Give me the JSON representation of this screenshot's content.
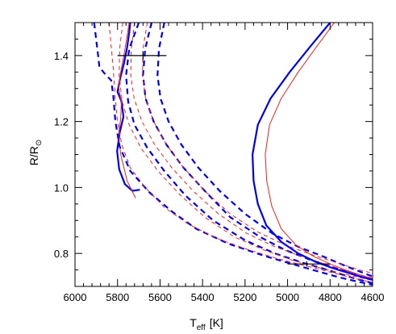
{
  "chart_data": {
    "type": "line",
    "xlabel_main": "T",
    "xlabel_sub": "eff",
    "xlabel_unit": "[K]",
    "ylabel_main": "R/R",
    "ylabel_sun": "⊙",
    "xlim": [
      6000,
      4600
    ],
    "ylim": [
      0.7,
      1.5
    ],
    "xticks": [
      6000,
      5800,
      5600,
      5400,
      5200,
      5000,
      4800,
      4600
    ],
    "xtick_labels": [
      "6000",
      "5800",
      "5600",
      "5400",
      "5200",
      "5000",
      "4800",
      "4600"
    ],
    "yticks": [
      0.8,
      1.0,
      1.2,
      1.4
    ],
    "ytick_labels": [
      "0.8",
      "1.0",
      "1.2",
      "1.4"
    ],
    "colors": {
      "blue": "#0000ee",
      "red": "#ee2222",
      "black": "#000000"
    },
    "series": [
      {
        "color": "blue",
        "style": "solid",
        "width": 2.2,
        "points": [
          [
            5695,
            0.993
          ],
          [
            5730,
            0.99
          ],
          [
            5765,
            1.01
          ],
          [
            5792,
            1.055
          ],
          [
            5802,
            1.11
          ],
          [
            5790,
            1.165
          ],
          [
            5772,
            1.215
          ],
          [
            5782,
            1.262
          ],
          [
            5800,
            1.29
          ],
          [
            5788,
            1.33
          ],
          [
            5770,
            1.375
          ],
          [
            5755,
            1.425
          ],
          [
            5745,
            1.47
          ],
          [
            5740,
            1.5
          ]
        ]
      },
      {
        "color": "red",
        "style": "solid",
        "width": 1.0,
        "points": [
          [
            5715,
            0.968
          ],
          [
            5755,
            1.02
          ],
          [
            5785,
            1.1
          ],
          [
            5795,
            1.16
          ],
          [
            5785,
            1.21
          ],
          [
            5782,
            1.26
          ],
          [
            5795,
            1.305
          ],
          [
            5785,
            1.35
          ],
          [
            5770,
            1.4
          ],
          [
            5755,
            1.46
          ],
          [
            5745,
            1.5
          ]
        ]
      },
      {
        "color": "blue",
        "style": "dashed",
        "width": 2.2,
        "points": [
          [
            5910,
            1.5
          ],
          [
            5895,
            1.42
          ],
          [
            5885,
            1.365
          ],
          [
            5860,
            1.345
          ],
          [
            5830,
            1.325
          ],
          [
            5820,
            1.28
          ],
          [
            5810,
            1.2
          ],
          [
            5790,
            1.125
          ],
          [
            5740,
            1.05
          ],
          [
            5650,
            0.985
          ],
          [
            5540,
            0.925
          ],
          [
            5430,
            0.875
          ],
          [
            5280,
            0.83
          ],
          [
            5120,
            0.795
          ],
          [
            4990,
            0.77
          ],
          [
            4870,
            0.748
          ],
          [
            4760,
            0.728
          ],
          [
            4680,
            0.716
          ],
          [
            4600,
            0.705
          ]
        ]
      },
      {
        "color": "blue",
        "style": "dashed",
        "width": 2.2,
        "points": [
          [
            5700,
            1.5
          ],
          [
            5745,
            1.42
          ],
          [
            5760,
            1.34
          ],
          [
            5750,
            1.26
          ],
          [
            5720,
            1.19
          ],
          [
            5660,
            1.12
          ],
          [
            5580,
            1.05
          ],
          [
            5480,
            0.975
          ],
          [
            5350,
            0.9
          ],
          [
            5200,
            0.84
          ],
          [
            5060,
            0.8
          ],
          [
            4930,
            0.772
          ],
          [
            4810,
            0.75
          ],
          [
            4690,
            0.725
          ],
          [
            4600,
            0.71
          ]
        ]
      },
      {
        "color": "blue",
        "style": "dashed",
        "width": 2.2,
        "points": [
          [
            5640,
            1.5
          ],
          [
            5670,
            1.42
          ],
          [
            5680,
            1.34
          ],
          [
            5668,
            1.27
          ],
          [
            5630,
            1.2
          ],
          [
            5570,
            1.13
          ],
          [
            5490,
            1.06
          ],
          [
            5390,
            0.99
          ],
          [
            5270,
            0.91
          ],
          [
            5130,
            0.85
          ],
          [
            5010,
            0.81
          ],
          [
            4890,
            0.78
          ],
          [
            4770,
            0.755
          ],
          [
            4650,
            0.728
          ],
          [
            4600,
            0.72
          ]
        ]
      },
      {
        "color": "blue",
        "style": "dashed",
        "width": 2.2,
        "points": [
          [
            5580,
            1.5
          ],
          [
            5605,
            1.42
          ],
          [
            5612,
            1.34
          ],
          [
            5598,
            1.27
          ],
          [
            5560,
            1.2
          ],
          [
            5500,
            1.13
          ],
          [
            5420,
            1.06
          ],
          [
            5320,
            0.99
          ],
          [
            5200,
            0.92
          ],
          [
            5070,
            0.86
          ],
          [
            4950,
            0.82
          ],
          [
            4830,
            0.79
          ],
          [
            4720,
            0.76
          ],
          [
            4600,
            0.73
          ]
        ]
      },
      {
        "color": "red",
        "style": "dashed",
        "width": 1.0,
        "points": [
          [
            5840,
            1.5
          ],
          [
            5830,
            1.43
          ],
          [
            5820,
            1.36
          ],
          [
            5812,
            1.28
          ],
          [
            5800,
            1.2
          ],
          [
            5780,
            1.13
          ],
          [
            5740,
            1.06
          ],
          [
            5670,
            1.0
          ],
          [
            5580,
            0.94
          ],
          [
            5470,
            0.89
          ],
          [
            5330,
            0.845
          ],
          [
            5180,
            0.81
          ],
          [
            5040,
            0.783
          ],
          [
            4900,
            0.76
          ],
          [
            4780,
            0.74
          ],
          [
            4660,
            0.72
          ],
          [
            4600,
            0.712
          ]
        ]
      },
      {
        "color": "red",
        "style": "dashed",
        "width": 1.0,
        "points": [
          [
            5775,
            1.5
          ],
          [
            5790,
            1.42
          ],
          [
            5792,
            1.34
          ],
          [
            5778,
            1.26
          ],
          [
            5745,
            1.19
          ],
          [
            5690,
            1.12
          ],
          [
            5610,
            1.05
          ],
          [
            5510,
            0.98
          ],
          [
            5390,
            0.91
          ],
          [
            5250,
            0.85
          ],
          [
            5110,
            0.81
          ],
          [
            4980,
            0.78
          ],
          [
            4860,
            0.758
          ],
          [
            4740,
            0.738
          ],
          [
            4600,
            0.718
          ]
        ]
      },
      {
        "color": "red",
        "style": "dashed",
        "width": 1.0,
        "points": [
          [
            5720,
            1.5
          ],
          [
            5735,
            1.42
          ],
          [
            5738,
            1.34
          ],
          [
            5722,
            1.27
          ],
          [
            5685,
            1.2
          ],
          [
            5625,
            1.13
          ],
          [
            5545,
            1.06
          ],
          [
            5445,
            0.99
          ],
          [
            5325,
            0.92
          ],
          [
            5190,
            0.86
          ],
          [
            5060,
            0.82
          ],
          [
            4930,
            0.79
          ],
          [
            4810,
            0.765
          ],
          [
            4700,
            0.742
          ],
          [
            4600,
            0.725
          ]
        ]
      },
      {
        "color": "red",
        "style": "dashed",
        "width": 1.0,
        "points": [
          [
            5660,
            1.5
          ],
          [
            5680,
            1.42
          ],
          [
            5683,
            1.34
          ],
          [
            5668,
            1.27
          ],
          [
            5630,
            1.2
          ],
          [
            5570,
            1.13
          ],
          [
            5490,
            1.06
          ],
          [
            5390,
            0.99
          ],
          [
            5270,
            0.92
          ],
          [
            5140,
            0.865
          ],
          [
            5010,
            0.825
          ],
          [
            4880,
            0.795
          ],
          [
            4760,
            0.77
          ],
          [
            4650,
            0.748
          ],
          [
            4600,
            0.74
          ]
        ]
      },
      {
        "color": "blue",
        "style": "solid",
        "width": 2.2,
        "points": [
          [
            4800,
            1.5
          ],
          [
            4890,
            1.43
          ],
          [
            4990,
            1.35
          ],
          [
            5080,
            1.27
          ],
          [
            5140,
            1.19
          ],
          [
            5165,
            1.1
          ],
          [
            5160,
            1.02
          ],
          [
            5140,
            0.95
          ],
          [
            5100,
            0.885
          ],
          [
            5030,
            0.835
          ],
          [
            4950,
            0.8
          ],
          [
            4870,
            0.775
          ],
          [
            4790,
            0.756
          ],
          [
            4720,
            0.742
          ],
          [
            4660,
            0.73
          ],
          [
            4600,
            0.72
          ]
        ]
      },
      {
        "color": "red",
        "style": "solid",
        "width": 1.0,
        "points": [
          [
            4780,
            1.5
          ],
          [
            4860,
            1.43
          ],
          [
            4950,
            1.35
          ],
          [
            5030,
            1.27
          ],
          [
            5085,
            1.19
          ],
          [
            5105,
            1.1
          ],
          [
            5098,
            1.02
          ],
          [
            5075,
            0.945
          ],
          [
            5030,
            0.875
          ],
          [
            4960,
            0.825
          ],
          [
            4880,
            0.792
          ],
          [
            4800,
            0.768
          ],
          [
            4720,
            0.748
          ],
          [
            4650,
            0.733
          ],
          [
            4600,
            0.724
          ]
        ]
      }
    ],
    "error_bars": [
      {
        "x": 5680,
        "y": 1.4,
        "x_low": 5800,
        "x_high": 5570,
        "y_err": 0.013
      },
      {
        "x": 4910,
        "y": 0.768,
        "x_low": 5000,
        "x_high": 4800,
        "y_err": 0.008
      }
    ]
  }
}
